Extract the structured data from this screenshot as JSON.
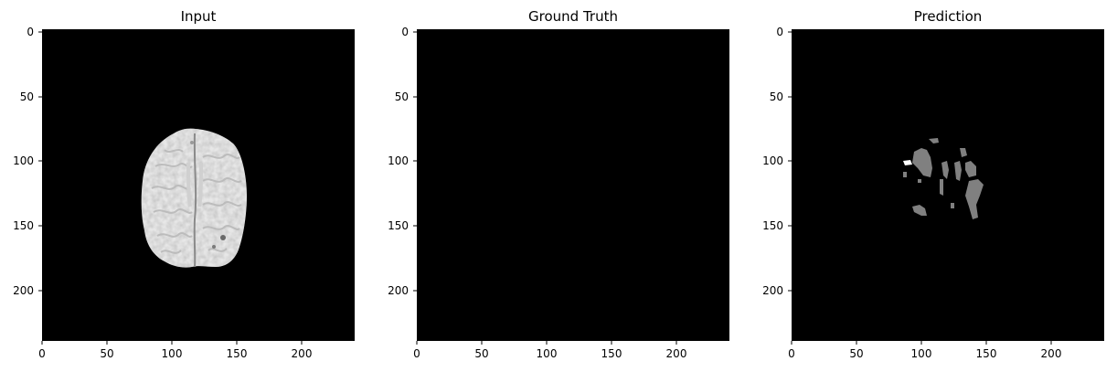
{
  "figure": {
    "panels": [
      {
        "key": "input",
        "title": "Input",
        "x_ticks": [
          "0",
          "50",
          "100",
          "150",
          "200"
        ],
        "y_ticks": [
          "0",
          "50",
          "100",
          "150",
          "200"
        ]
      },
      {
        "key": "ground_truth",
        "title": "Ground Truth",
        "x_ticks": [
          "0",
          "50",
          "100",
          "150",
          "200"
        ],
        "y_ticks": [
          "0",
          "50",
          "100",
          "150",
          "200"
        ]
      },
      {
        "key": "prediction",
        "title": "Prediction",
        "x_ticks": [
          "0",
          "50",
          "100",
          "150",
          "200"
        ],
        "y_ticks": [
          "0",
          "50",
          "100",
          "150",
          "200"
        ]
      }
    ],
    "colors": {
      "background": "#000000",
      "brain_tissue": "#e6e6e6",
      "prediction_class_1": "#808080",
      "prediction_class_2": "#ffffff"
    }
  }
}
